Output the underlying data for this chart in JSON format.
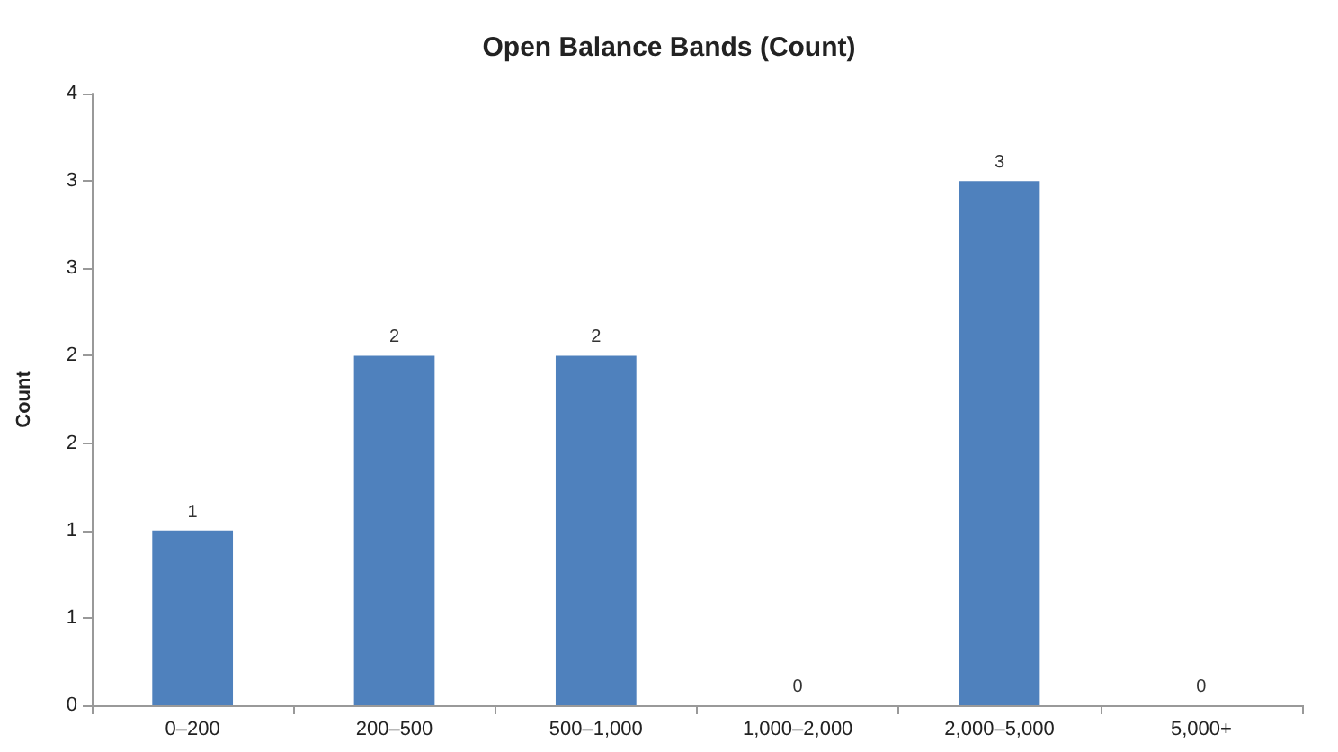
{
  "chart_data": {
    "type": "bar",
    "title": "Open Balance Bands (Count)",
    "ylabel": "Count",
    "categories": [
      "0–200",
      "200–500",
      "500–1,000",
      "1,000–2,000",
      "2,000–5,000",
      "5,000+"
    ],
    "values": [
      1,
      2,
      2,
      0,
      3,
      0
    ],
    "color": "#4f81bd",
    "data_labels": true,
    "grid": false,
    "ylim": [
      0,
      3.5
    ],
    "yticks": [
      0,
      {
        "value": 0.5,
        "label": "1"
      },
      1,
      {
        "value": 1.5,
        "label": "2"
      },
      2,
      {
        "value": 2.5,
        "label": "3"
      },
      3,
      {
        "value": 3.5,
        "label": "4"
      }
    ]
  }
}
